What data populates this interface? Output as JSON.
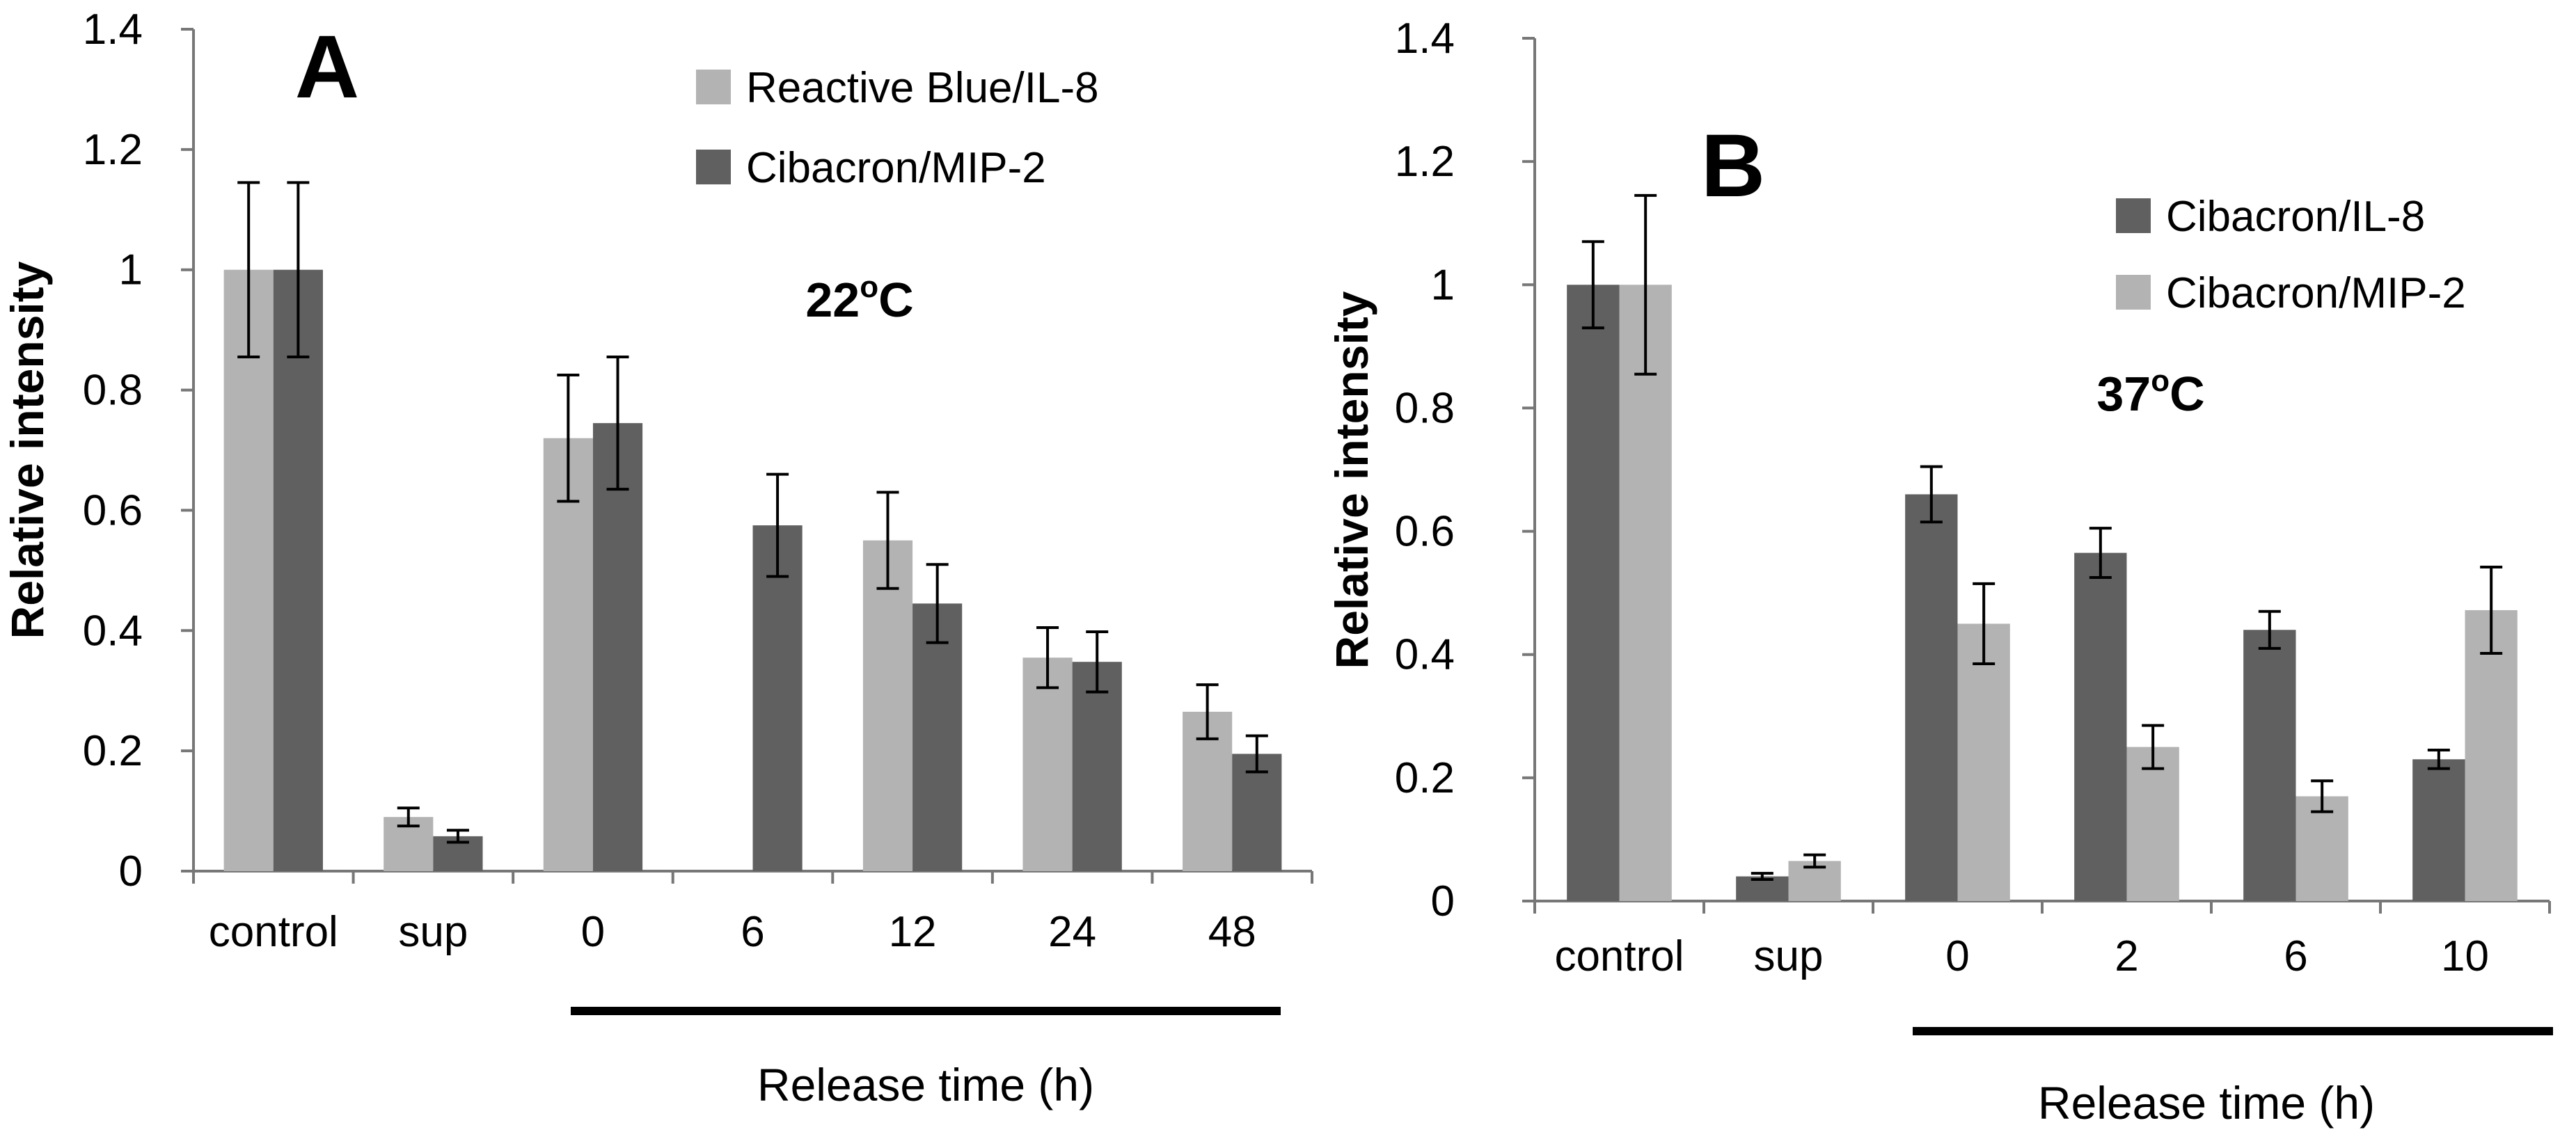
{
  "chart_data": [
    {
      "type": "bar",
      "panel_label": "A",
      "annotation": "22",
      "annotation_superscript": "o",
      "annotation_suffix": "C",
      "ylabel": "Relative intensity",
      "xlabel": "Release time (h)",
      "ylim": [
        0,
        1.4
      ],
      "yticks": [
        "0",
        "0.2",
        "0.4",
        "0.6",
        "0.8",
        "1",
        "1.2",
        "1.4"
      ],
      "categories": [
        "control",
        "sup",
        "0",
        "6",
        "12",
        "24",
        "48"
      ],
      "legend_position": "top-right",
      "series": [
        {
          "name": "Reactive Blue/IL-8",
          "color": "#b3b3b3",
          "values": [
            1.0,
            0.09,
            0.72,
            null,
            0.55,
            0.355,
            0.265
          ],
          "errors": [
            0.145,
            0.015,
            0.105,
            null,
            0.08,
            0.05,
            0.045
          ]
        },
        {
          "name": "Cibacron/MIP-2",
          "color": "#606060",
          "values": [
            1.0,
            0.058,
            0.745,
            0.575,
            0.445,
            0.348,
            0.195
          ],
          "errors": [
            0.145,
            0.01,
            0.11,
            0.085,
            0.065,
            0.05,
            0.03
          ]
        }
      ],
      "grid": false
    },
    {
      "type": "bar",
      "panel_label": "B",
      "annotation": "37",
      "annotation_superscript": "o",
      "annotation_suffix": "C",
      "ylabel": "Relative intensity",
      "xlabel": "Release time (h)",
      "ylim": [
        0,
        1.4
      ],
      "yticks": [
        "0",
        "0.2",
        "0.4",
        "0.6",
        "0.8",
        "1",
        "1.2",
        "1.4"
      ],
      "categories": [
        "control",
        "sup",
        "0",
        "2",
        "6",
        "10"
      ],
      "legend_position": "top-right",
      "series": [
        {
          "name": "Cibacron/IL-8",
          "color": "#606060",
          "values": [
            1.0,
            0.04,
            0.66,
            0.565,
            0.44,
            0.23
          ],
          "errors": [
            0.07,
            0.005,
            0.045,
            0.04,
            0.03,
            0.015
          ]
        },
        {
          "name": "Cibacron/MIP-2",
          "color": "#b3b3b3",
          "values": [
            1.0,
            0.065,
            0.45,
            0.25,
            0.17,
            0.472
          ],
          "errors": [
            0.145,
            0.01,
            0.065,
            0.035,
            0.025,
            0.07
          ]
        }
      ],
      "grid": false
    }
  ]
}
